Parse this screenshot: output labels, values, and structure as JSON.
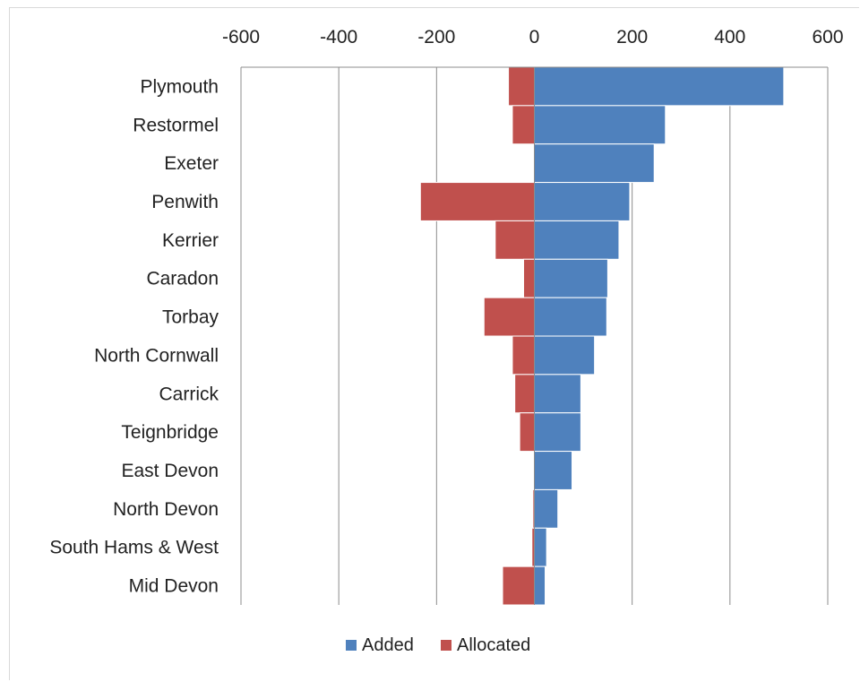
{
  "chart_data": {
    "type": "bar",
    "orientation": "horizontal",
    "stacked": true,
    "categories": [
      "Plymouth",
      "Restormel",
      "Exeter",
      "Penwith",
      "Kerrier",
      "Caradon",
      "Torbay",
      "North Cornwall",
      "Carrick",
      "Teignbridge",
      "East Devon",
      "North Devon",
      "South Hams & West",
      "Mid Devon"
    ],
    "series": [
      {
        "name": "Added",
        "color": "#4F81BD",
        "values": [
          510,
          268,
          245,
          195,
          173,
          150,
          148,
          123,
          95,
          95,
          77,
          48,
          25,
          22
        ]
      },
      {
        "name": "Allocated",
        "color": "#C0504D",
        "values": [
          -53,
          -45,
          0,
          -233,
          -80,
          -22,
          -103,
          -45,
          -40,
          -30,
          0,
          -3,
          -5,
          -65
        ]
      }
    ],
    "xlim": [
      -600,
      600
    ],
    "xticks": [
      "-600",
      "-400",
      "-200",
      "0",
      "200",
      "400",
      "600"
    ],
    "xtick_values": [
      -600,
      -400,
      -200,
      0,
      200,
      400,
      600
    ],
    "x_axis_position": "top",
    "grid": true,
    "legend": {
      "position": "bottom",
      "entries": [
        "Added",
        "Allocated"
      ]
    },
    "title": "",
    "xlabel": "",
    "ylabel": ""
  }
}
